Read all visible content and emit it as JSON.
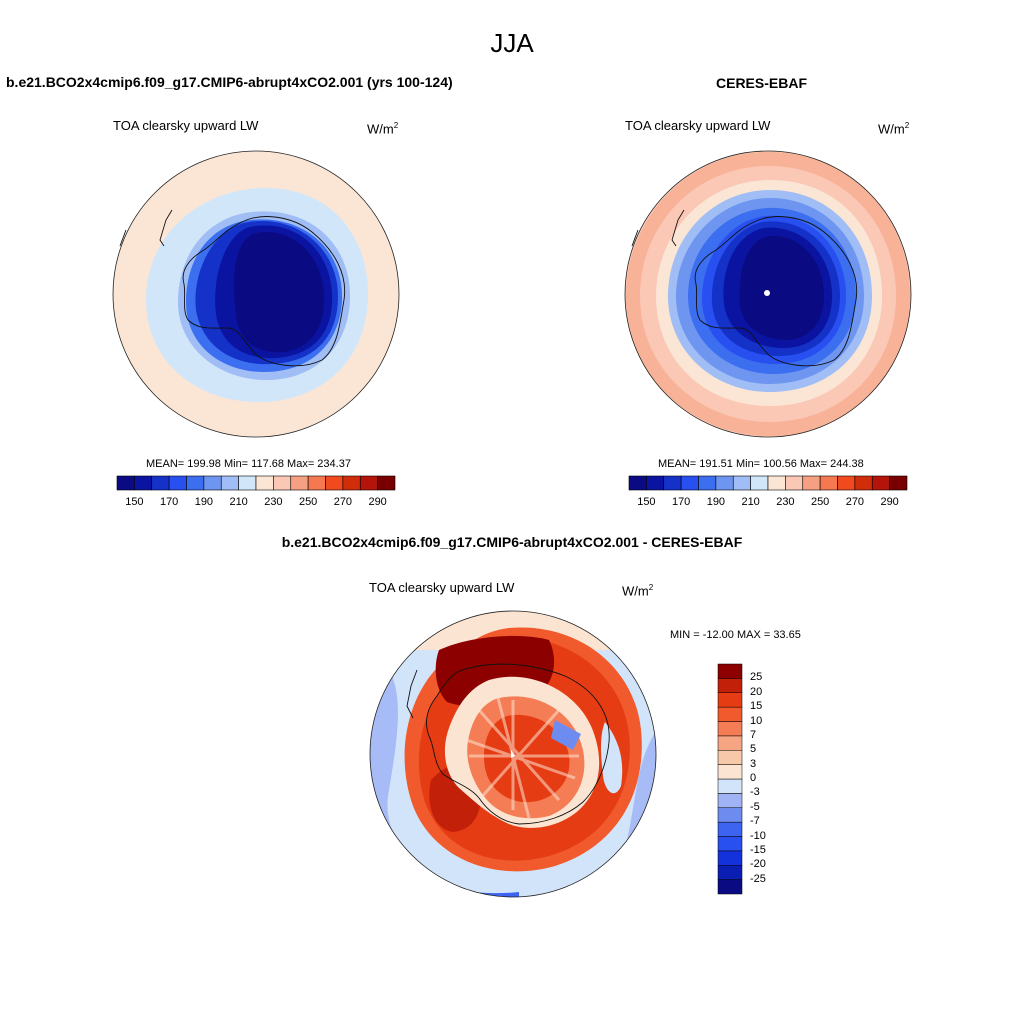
{
  "title": "JJA",
  "panels": {
    "model": {
      "header": "b.e21.BCO2x4cmip6.f09_g17.CMIP6-abrupt4xCO2.001 (yrs 100-124)",
      "variable": "TOA clearsky upward LW",
      "units_base": "W/m",
      "units_exp": "2",
      "stats": "MEAN= 199.98  Min= 117.68  Max= 234.37"
    },
    "obs": {
      "header": "CERES-EBAF",
      "variable": "TOA clearsky upward LW",
      "units_base": "W/m",
      "units_exp": "2",
      "stats": "MEAN= 191.51  Min= 100.56  Max= 244.38"
    },
    "diff": {
      "header": "b.e21.BCO2x4cmip6.f09_g17.CMIP6-abrupt4xCO2.001 - CERES-EBAF",
      "variable": "TOA clearsky upward LW",
      "units_base": "W/m",
      "units_exp": "2",
      "stats": "MIN = -12.00 MAX =  33.65"
    }
  },
  "colorbars": {
    "abs": {
      "colors": [
        "#0a0a82",
        "#0a14a0",
        "#1432c8",
        "#2850f0",
        "#3c6ef0",
        "#6e96f0",
        "#a0bef5",
        "#d2e6fa",
        "#fbe6d6",
        "#fac8b4",
        "#f5a082",
        "#f57850",
        "#f04a1e",
        "#d22d0a",
        "#b4140a",
        "#780000"
      ],
      "tick_labels": [
        "150",
        "170",
        "190",
        "210",
        "230",
        "250",
        "270",
        "290"
      ]
    },
    "diff": {
      "colors": [
        "#0a0a82",
        "#0a1eb4",
        "#1432dc",
        "#2850f0",
        "#3c64f0",
        "#6e8cf0",
        "#a0b4f5",
        "#d2e4fa",
        "#fbe4d2",
        "#f7c8aa",
        "#f5a582",
        "#f57d55",
        "#f05a2d",
        "#e63c14",
        "#c3200a",
        "#8c0000"
      ],
      "tick_labels": [
        "25",
        "20",
        "15",
        "10",
        "7",
        "5",
        "3",
        "0",
        "-3",
        "-5",
        "-7",
        "-10",
        "-15",
        "-20",
        "-25"
      ]
    }
  }
}
